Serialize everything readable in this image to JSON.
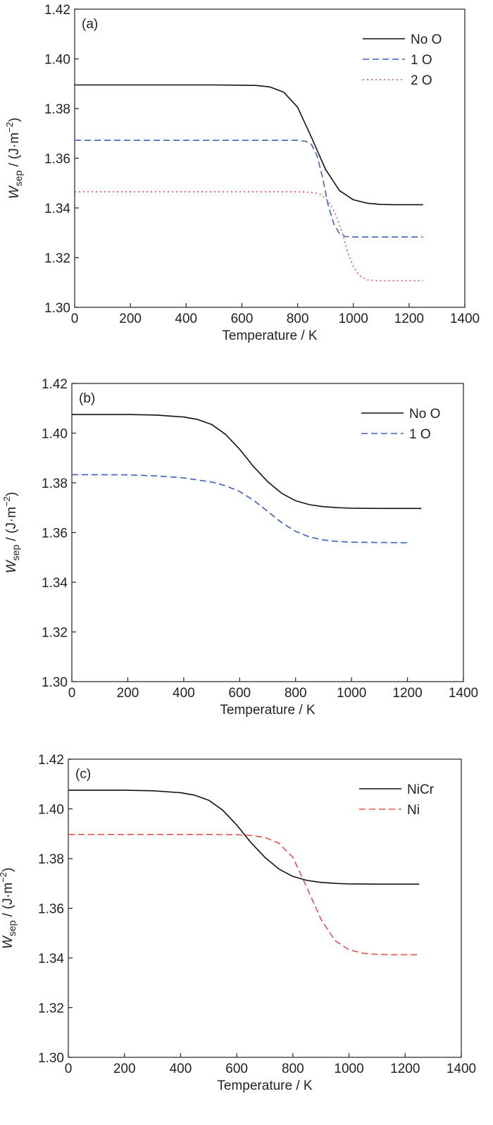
{
  "chart_data": [
    {
      "type": "line",
      "panel_label": "(a)",
      "xlabel": "Temperature / K",
      "ylabel": {
        "main": "W",
        "sub": "sep",
        "units_pre": " / (J·m",
        "units_sup": "−2",
        "units_post": ")"
      },
      "xlim": [
        0,
        1400
      ],
      "ylim": [
        1.3,
        1.42
      ],
      "xticks": [
        0,
        200,
        400,
        600,
        800,
        1000,
        1200,
        1400
      ],
      "yticks": [
        1.3,
        1.32,
        1.34,
        1.36,
        1.38,
        1.4,
        1.42
      ],
      "xtick_labels": [
        "0",
        "200",
        "400",
        "600",
        "800",
        "1000",
        "1200",
        "1400"
      ],
      "ytick_labels": [
        "1.30",
        "1.32",
        "1.34",
        "1.36",
        "1.38",
        "1.40",
        "1.42"
      ],
      "grid": false,
      "legend_position": "top-right",
      "series": [
        {
          "name": "No O",
          "color": "#111111",
          "dash": "solid",
          "x": [
            0,
            100,
            200,
            300,
            400,
            500,
            600,
            650,
            700,
            750,
            800,
            850,
            900,
            950,
            1000,
            1050,
            1100,
            1150,
            1200,
            1250
          ],
          "y": [
            1.3895,
            1.3895,
            1.3895,
            1.3895,
            1.3895,
            1.3895,
            1.3894,
            1.3893,
            1.3887,
            1.3866,
            1.3805,
            1.3683,
            1.3556,
            1.347,
            1.3433,
            1.3419,
            1.3414,
            1.3413,
            1.3413,
            1.3413
          ]
        },
        {
          "name": "1 O",
          "color": "#3a5fc8",
          "dash": "dashed",
          "x": [
            0,
            200,
            400,
            600,
            700,
            800,
            830,
            850,
            870,
            890,
            910,
            930,
            950,
            970,
            1000,
            1100,
            1250
          ],
          "y": [
            1.3672,
            1.3672,
            1.3672,
            1.3672,
            1.3672,
            1.3672,
            1.3668,
            1.3655,
            1.361,
            1.352,
            1.341,
            1.3335,
            1.3298,
            1.3285,
            1.3283,
            1.3283,
            1.3283
          ]
        },
        {
          "name": "2 O",
          "color": "#e8504a",
          "dash": "dotted",
          "x": [
            0,
            200,
            400,
            600,
            800,
            850,
            880,
            900,
            920,
            940,
            960,
            980,
            1000,
            1020,
            1050,
            1100,
            1250
          ],
          "y": [
            1.3465,
            1.3465,
            1.3465,
            1.3465,
            1.3465,
            1.3463,
            1.3455,
            1.344,
            1.341,
            1.3365,
            1.33,
            1.322,
            1.3165,
            1.313,
            1.311,
            1.3107,
            1.3107
          ]
        }
      ]
    },
    {
      "type": "line",
      "panel_label": "(b)",
      "xlabel": "Temperature / K",
      "ylabel": {
        "main": "W",
        "sub": "sep",
        "units_pre": " / (J·m",
        "units_sup": "−2",
        "units_post": ")"
      },
      "xlim": [
        0,
        1400
      ],
      "ylim": [
        1.3,
        1.42
      ],
      "xticks": [
        0,
        200,
        400,
        600,
        800,
        1000,
        1200,
        1400
      ],
      "yticks": [
        1.3,
        1.32,
        1.34,
        1.36,
        1.38,
        1.4,
        1.42
      ],
      "xtick_labels": [
        "0",
        "200",
        "400",
        "600",
        "800",
        "1000",
        "1200",
        "1400"
      ],
      "ytick_labels": [
        "1.30",
        "1.32",
        "1.34",
        "1.36",
        "1.38",
        "1.40",
        "1.42"
      ],
      "grid": false,
      "legend_position": "top-right",
      "series": [
        {
          "name": "No O",
          "color": "#111111",
          "dash": "solid",
          "x": [
            0,
            100,
            200,
            300,
            400,
            450,
            500,
            550,
            600,
            650,
            700,
            750,
            800,
            850,
            900,
            950,
            1000,
            1100,
            1250
          ],
          "y": [
            1.4075,
            1.4075,
            1.4075,
            1.4073,
            1.4065,
            1.4055,
            1.4035,
            1.3995,
            1.3935,
            1.3865,
            1.3805,
            1.3758,
            1.3728,
            1.3712,
            1.3704,
            1.37,
            1.3698,
            1.3697,
            1.3697
          ]
        },
        {
          "name": "1 O",
          "color": "#3a5fc8",
          "dash": "dashed",
          "x": [
            0,
            100,
            200,
            300,
            400,
            500,
            550,
            600,
            650,
            700,
            750,
            800,
            850,
            900,
            950,
            1000,
            1100,
            1200
          ],
          "y": [
            1.3833,
            1.3833,
            1.3832,
            1.3828,
            1.382,
            1.3803,
            1.3788,
            1.3765,
            1.373,
            1.3685,
            1.364,
            1.3605,
            1.3582,
            1.357,
            1.3564,
            1.3561,
            1.356,
            1.3559
          ]
        }
      ]
    },
    {
      "type": "line",
      "panel_label": "(c)",
      "xlabel": "Temperature / K",
      "ylabel": {
        "main": "W",
        "sub": "sep",
        "units_pre": " / (J·m",
        "units_sup": "−2",
        "units_post": ")"
      },
      "xlim": [
        0,
        1400
      ],
      "ylim": [
        1.3,
        1.42
      ],
      "xticks": [
        0,
        200,
        400,
        600,
        800,
        1000,
        1200,
        1400
      ],
      "yticks": [
        1.3,
        1.32,
        1.34,
        1.36,
        1.38,
        1.4,
        1.42
      ],
      "xtick_labels": [
        "0",
        "200",
        "400",
        "600",
        "800",
        "1000",
        "1200",
        "1400"
      ],
      "ytick_labels": [
        "1.30",
        "1.32",
        "1.34",
        "1.36",
        "1.38",
        "1.40",
        "1.42"
      ],
      "grid": false,
      "legend_position": "top-right",
      "series": [
        {
          "name": "NiCr",
          "color": "#111111",
          "dash": "solid",
          "x": [
            0,
            100,
            200,
            300,
            400,
            450,
            500,
            550,
            600,
            650,
            700,
            750,
            800,
            850,
            900,
            950,
            1000,
            1100,
            1250
          ],
          "y": [
            1.4075,
            1.4075,
            1.4075,
            1.4073,
            1.4065,
            1.4055,
            1.4035,
            1.3995,
            1.3935,
            1.3865,
            1.3805,
            1.3758,
            1.3728,
            1.3712,
            1.3704,
            1.37,
            1.3698,
            1.3697,
            1.3697
          ]
        },
        {
          "name": "Ni",
          "color": "#e8504a",
          "dash": "dashed",
          "x": [
            0,
            100,
            200,
            300,
            400,
            500,
            600,
            650,
            700,
            750,
            800,
            850,
            900,
            950,
            1000,
            1050,
            1100,
            1150,
            1200,
            1250
          ],
          "y": [
            1.3897,
            1.3897,
            1.3897,
            1.3897,
            1.3897,
            1.3897,
            1.3896,
            1.3893,
            1.3885,
            1.3862,
            1.3805,
            1.3683,
            1.3556,
            1.347,
            1.3433,
            1.3419,
            1.3414,
            1.3413,
            1.3413,
            1.3413
          ]
        }
      ]
    }
  ]
}
